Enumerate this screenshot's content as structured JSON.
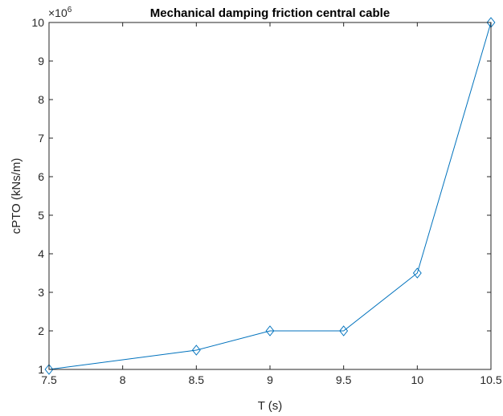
{
  "chart_data": {
    "type": "line",
    "title": "Mechanical damping friction central cable",
    "xlabel": "T (s)",
    "ylabel": "cPTO (kNs/m)",
    "y_multiplier_base": "×10",
    "y_multiplier_exponent": "6",
    "xlim": [
      7.5,
      10.5
    ],
    "ylim": [
      1,
      10
    ],
    "xticks": [
      7.5,
      8,
      8.5,
      9,
      9.5,
      10,
      10.5
    ],
    "xtick_labels": [
      "7.5",
      "8",
      "8.5",
      "9",
      "9.5",
      "10",
      "10.5"
    ],
    "yticks": [
      1,
      2,
      3,
      4,
      5,
      6,
      7,
      8,
      9,
      10
    ],
    "ytick_labels": [
      "1",
      "2",
      "3",
      "4",
      "5",
      "6",
      "7",
      "8",
      "9",
      "10"
    ],
    "grid": false,
    "marker": "diamond",
    "series": [
      {
        "color": "#0072BD",
        "x": [
          7.5,
          8.5,
          9,
          9.5,
          10,
          10.5
        ],
        "y": [
          1,
          1.5,
          2,
          2,
          3.5,
          10
        ]
      }
    ]
  }
}
